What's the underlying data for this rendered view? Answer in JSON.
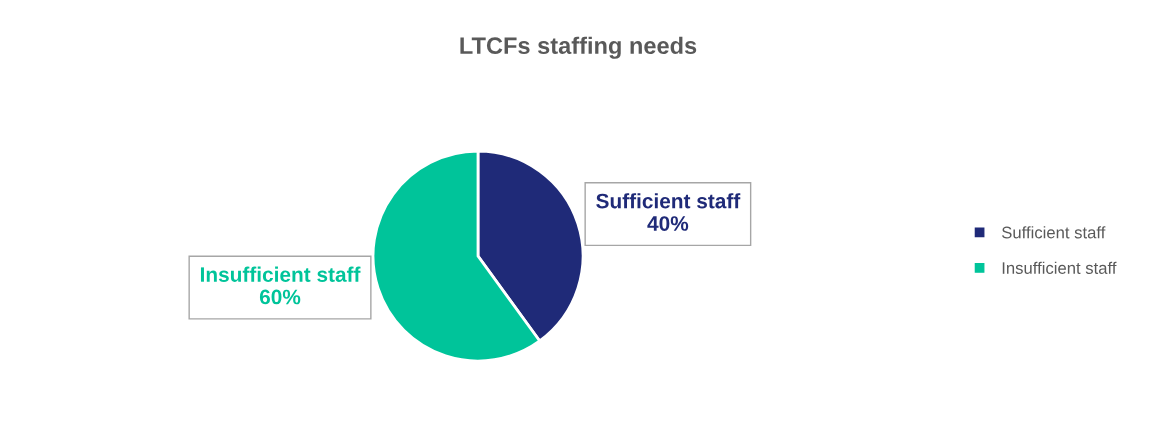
{
  "chart_data": {
    "type": "pie",
    "title": "LTCFs staffing needs",
    "categories": [
      "Sufficient staff",
      "Insufficient staff"
    ],
    "values": [
      40,
      60
    ],
    "value_labels": [
      "40%",
      "60%"
    ],
    "colors": [
      "#1f2a78",
      "#00c49a"
    ],
    "legend": "right"
  }
}
